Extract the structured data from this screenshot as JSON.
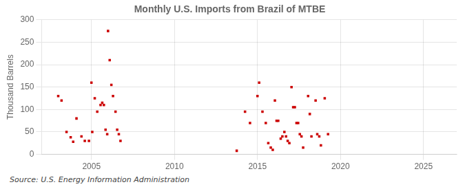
{
  "chart_data": {
    "type": "scatter",
    "title": "Monthly U.S. Imports from Brazil of MTBE",
    "ylabel": "Thousand Barrels",
    "source": "Source: U.S. Energy Information Administration",
    "x": [
      2003.0,
      2003.2,
      2003.5,
      2003.75,
      2003.9,
      2004.1,
      2004.4,
      2004.6,
      2004.85,
      2005.0,
      2005.05,
      2005.2,
      2005.35,
      2005.55,
      2005.65,
      2005.75,
      2005.85,
      2005.95,
      2006.0,
      2006.1,
      2006.2,
      2006.3,
      2006.45,
      2006.55,
      2006.65,
      2006.75,
      2013.75,
      2014.25,
      2014.55,
      2015.0,
      2015.1,
      2015.3,
      2015.5,
      2015.65,
      2015.8,
      2015.92,
      2016.05,
      2016.15,
      2016.25,
      2016.4,
      2016.5,
      2016.62,
      2016.72,
      2016.82,
      2016.92,
      2017.05,
      2017.15,
      2017.25,
      2017.35,
      2017.45,
      2017.55,
      2017.65,
      2017.75,
      2018.05,
      2018.15,
      2018.25,
      2018.5,
      2018.6,
      2018.72,
      2018.82,
      2019.05,
      2019.25
    ],
    "values": [
      130,
      120,
      50,
      38,
      28,
      80,
      40,
      30,
      30,
      160,
      50,
      125,
      95,
      110,
      115,
      110,
      55,
      45,
      275,
      210,
      155,
      130,
      95,
      55,
      45,
      30,
      8,
      95,
      70,
      130,
      160,
      95,
      70,
      25,
      15,
      10,
      120,
      75,
      75,
      35,
      40,
      50,
      40,
      30,
      25,
      150,
      105,
      105,
      70,
      70,
      45,
      40,
      15,
      130,
      90,
      40,
      120,
      45,
      40,
      20,
      125,
      45
    ],
    "color": "#cc0000",
    "marker": "square",
    "xlim": [
      2002,
      2027
    ],
    "xticks": [
      2005,
      2010,
      2015,
      2020,
      2025
    ],
    "ylim": [
      0,
      300
    ],
    "yticks": [
      0,
      50,
      100,
      150,
      200,
      250,
      300
    ],
    "grid": true
  }
}
